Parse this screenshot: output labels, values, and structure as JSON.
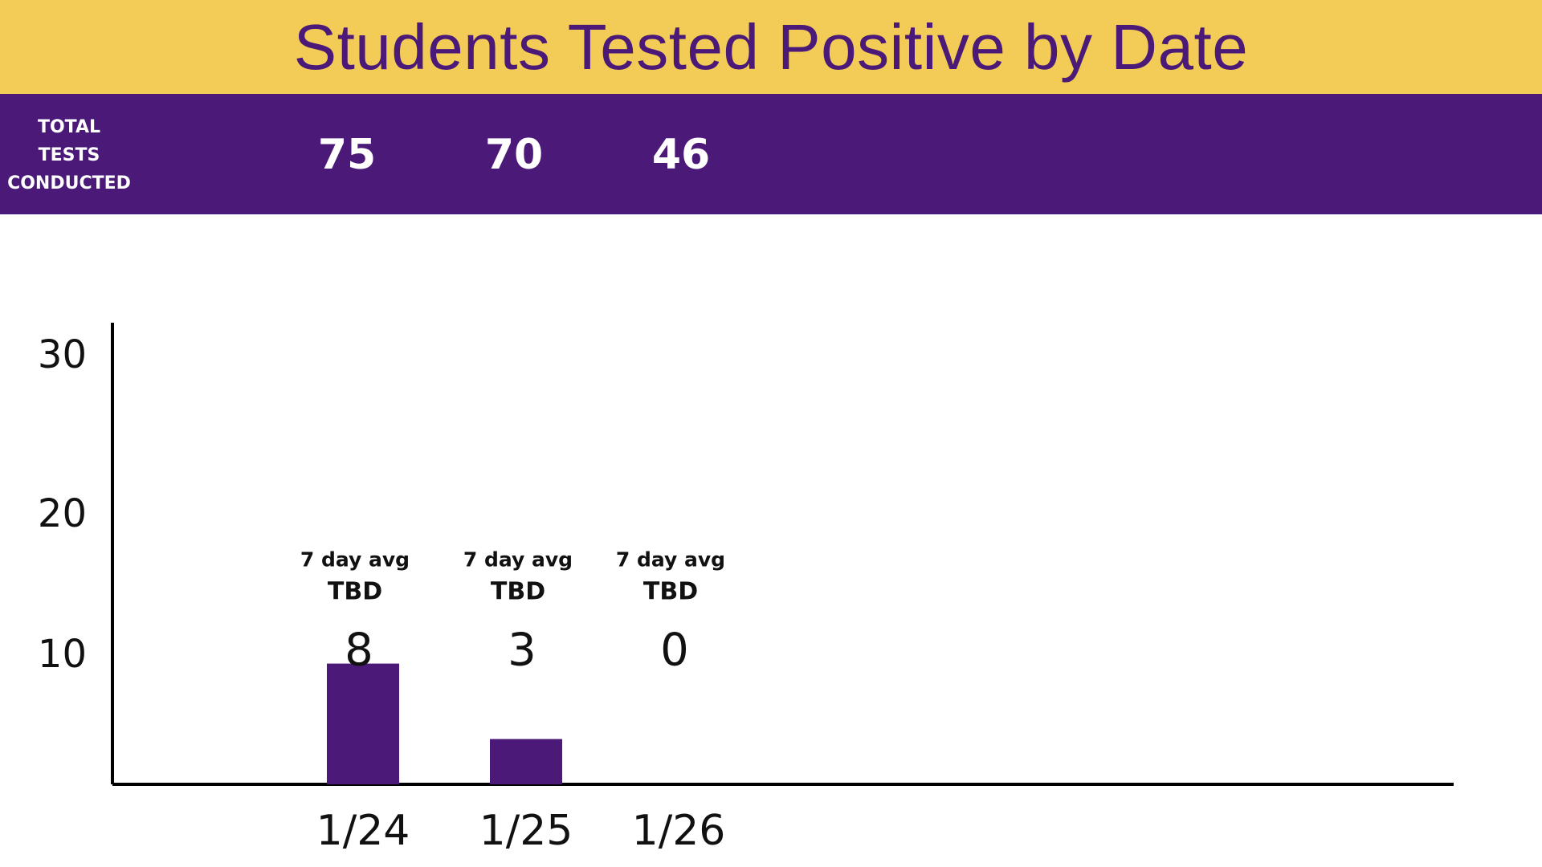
{
  "header": {
    "title": "Students Tested Positive by Date",
    "band_color": "#F3CB57",
    "title_color": "#4B1A78"
  },
  "tests": {
    "label_lines": [
      "TOTAL",
      "TESTS",
      "CONDUCTED"
    ],
    "band_color": "#4B1A78",
    "values": [
      "75",
      "70",
      "46"
    ]
  },
  "chart_data": {
    "type": "bar",
    "title": "Students Tested Positive by Date",
    "categories": [
      "1/24",
      "1/25",
      "1/26"
    ],
    "values": [
      8,
      3,
      0
    ],
    "data_labels": [
      "8",
      "3",
      "0"
    ],
    "annotations": [
      {
        "label": "7 day avg",
        "value": "TBD"
      },
      {
        "label": "7 day avg",
        "value": "TBD"
      },
      {
        "label": "7 day avg",
        "value": "TBD"
      }
    ],
    "y_ticks": [
      "10",
      "20",
      "30"
    ],
    "xlabel": "",
    "ylabel": "",
    "ylim": [
      0,
      32
    ],
    "grid": false,
    "bar_color": "#4B1A78"
  }
}
